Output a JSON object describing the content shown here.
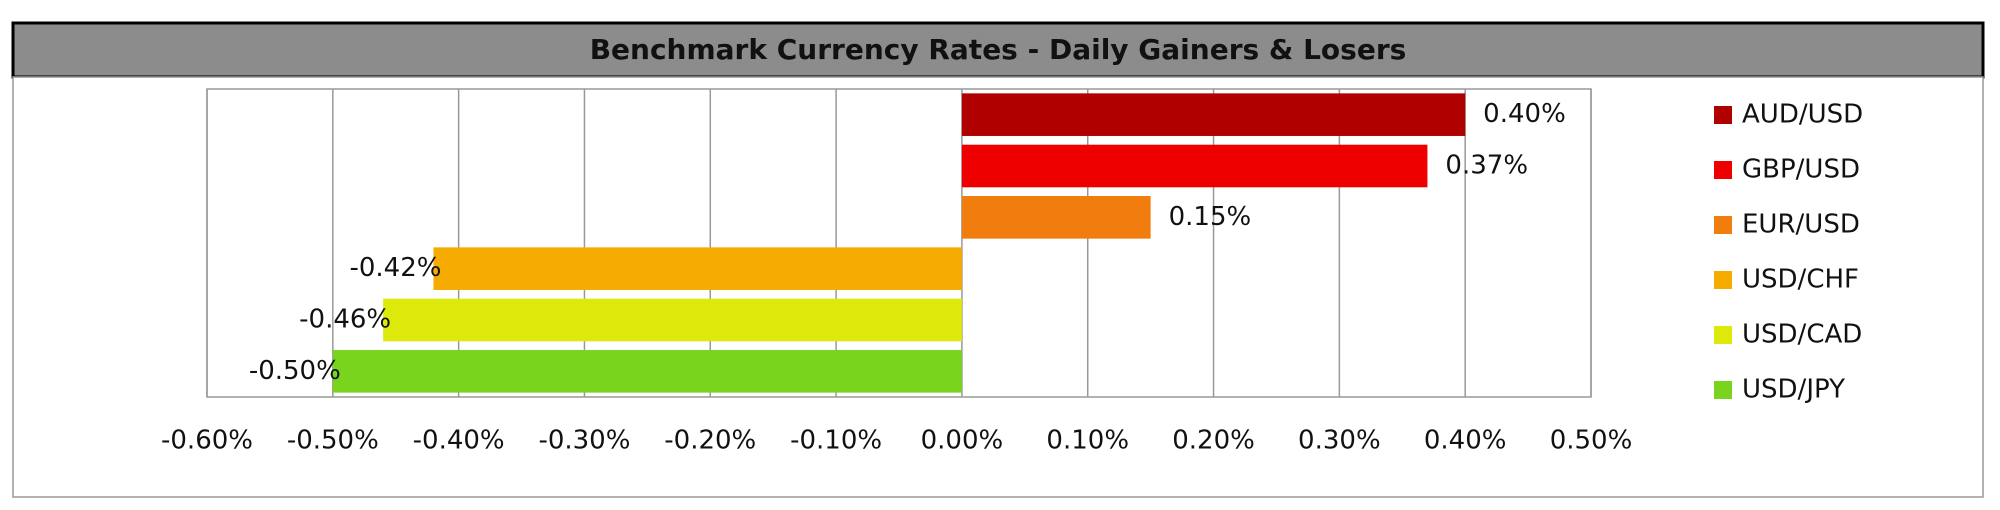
{
  "chart_data": {
    "type": "bar",
    "orientation": "horizontal",
    "title": "Benchmark Currency Rates - Daily Gainers & Losers",
    "series": [
      {
        "name": "AUD/USD",
        "color": "#b00000",
        "values": [
          0.4
        ],
        "value_labels": [
          "0.40%"
        ]
      },
      {
        "name": "GBP/USD",
        "color": "#ee0000",
        "values": [
          0.37
        ],
        "value_labels": [
          "0.37%"
        ]
      },
      {
        "name": "EUR/USD",
        "color": "#f07d0d",
        "values": [
          0.15
        ],
        "value_labels": [
          "0.15%"
        ]
      },
      {
        "name": "USD/CHF",
        "color": "#f5ab00",
        "values": [
          -0.42
        ],
        "value_labels": [
          "-0.42%"
        ]
      },
      {
        "name": "USD/CAD",
        "color": "#dce90a",
        "values": [
          -0.46
        ],
        "value_labels": [
          "-0.46%"
        ]
      },
      {
        "name": "USD/JPY",
        "color": "#78d41c",
        "values": [
          -0.5
        ],
        "value_labels": [
          "-0.50%"
        ]
      }
    ],
    "xlim": [
      -0.6,
      0.5
    ],
    "xticks": [
      {
        "value": -0.6,
        "label": "-0.60%"
      },
      {
        "value": -0.5,
        "label": "-0.50%"
      },
      {
        "value": -0.4,
        "label": "-0.40%"
      },
      {
        "value": -0.3,
        "label": "-0.30%"
      },
      {
        "value": -0.2,
        "label": "-0.20%"
      },
      {
        "value": -0.1,
        "label": "-0.10%"
      },
      {
        "value": 0,
        "label": "0.00%"
      },
      {
        "value": 0.1,
        "label": "0.10%"
      },
      {
        "value": 0.2,
        "label": "0.20%"
      },
      {
        "value": 0.3,
        "label": "0.30%"
      },
      {
        "value": 0.4,
        "label": "0.40%"
      },
      {
        "value": 0.5,
        "label": "0.50%"
      }
    ],
    "grid": true,
    "legend": "right"
  }
}
